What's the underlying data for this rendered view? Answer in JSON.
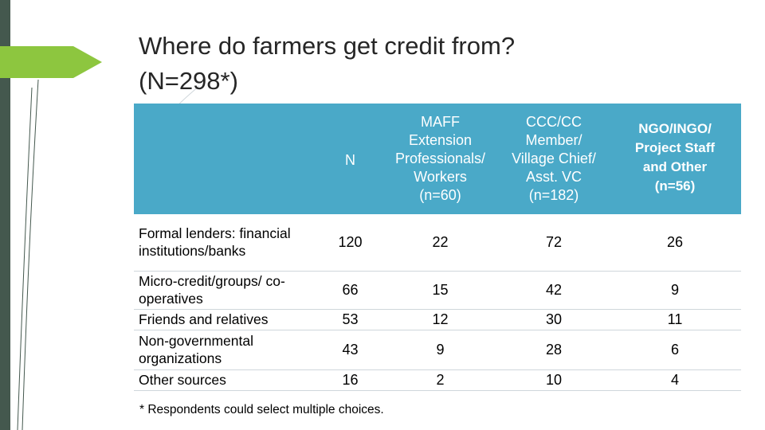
{
  "slide": {
    "title_line1": "Where do farmers get credit from?",
    "title_line2": "(N=298*)",
    "footnote": "* Respondents could select multiple choices."
  },
  "table": {
    "headers": {
      "blank": "",
      "n": "N",
      "maff": [
        "MAFF",
        "Extension",
        "Professionals/",
        "Workers",
        "(n=60)"
      ],
      "ccc": [
        "CCC/CC",
        "Member/",
        "Village Chief/",
        "Asst. VC",
        "(n=182)"
      ],
      "ngo": [
        "NGO/INGO/",
        "Project Staff",
        "and Other",
        "(n=56)"
      ]
    },
    "rows": [
      {
        "label": "Formal lenders: financial institutions/banks",
        "n": "120",
        "maff": "22",
        "ccc": "72",
        "ngo": "26"
      },
      {
        "label": "Micro-credit/groups/ co-operatives",
        "n": "66",
        "maff": "15",
        "ccc": "42",
        "ngo": "9"
      },
      {
        "label": "Friends and relatives",
        "n": "53",
        "maff": "12",
        "ccc": "30",
        "ngo": "11"
      },
      {
        "label": "Non-governmental organizations",
        "n": "43",
        "maff": "9",
        "ccc": "28",
        "ngo": "6"
      },
      {
        "label": "Other sources",
        "n": "16",
        "maff": "2",
        "ccc": "10",
        "ngo": "4"
      }
    ]
  },
  "colors": {
    "header_bg": "#4aa9c8",
    "row_alt": "#dfe4e7",
    "left_bar": "#44584e",
    "arrow": "#8dc63f"
  }
}
